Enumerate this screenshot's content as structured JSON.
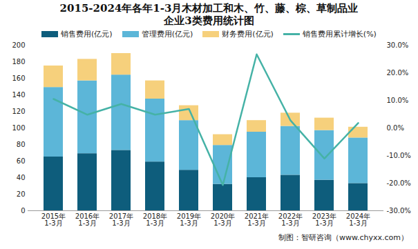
{
  "chart_data": {
    "type": "bar",
    "title": "2015-2024年各年1-3月木材加工和木、竹、藤、棕、草制品业企业3类费用统计图",
    "caption": "制图：智研咨询（www.chyxx.com）",
    "stacked": true,
    "categories": [
      "2015年\n1-3月",
      "2016年\n1-3月",
      "2017年\n1-3月",
      "2018年\n1-3月",
      "2019年\n1-3月",
      "2020年\n1-3月",
      "2021年\n1-3月",
      "2022年\n1-3月",
      "2023年\n1-3月",
      "2024年\n1-3月"
    ],
    "series": [
      {
        "name": "销售费用(亿元)",
        "color": "#0e5d7c",
        "values": [
          65,
          69,
          73,
          59,
          49,
          32,
          40,
          43,
          37,
          33
        ]
      },
      {
        "name": "管理费用(亿元)",
        "color": "#5cb6d8",
        "values": [
          84,
          88,
          91,
          76,
          60,
          47,
          55,
          59,
          60,
          55
        ]
      },
      {
        "name": "财务费用(亿元)",
        "color": "#f6d07c",
        "values": [
          26,
          26,
          26,
          22,
          18,
          13,
          14,
          16,
          15,
          13
        ]
      },
      {
        "name": "销售费用累计增长(%)",
        "color": "#45b2a6",
        "type": "line",
        "axis": "y2",
        "values": [
          10.5,
          4.8,
          8.7,
          4.8,
          6.9,
          -20.7,
          26.7,
          2.7,
          -11.1,
          1.8
        ]
      }
    ],
    "ylim": [
      0,
      200
    ],
    "yticks": [
      0,
      20,
      40,
      60,
      80,
      100,
      120,
      140,
      160,
      180,
      200
    ],
    "y2lim": [
      -30,
      30
    ],
    "y2ticks": [
      {
        "value": -30,
        "label": "-30.0%"
      },
      {
        "value": -20,
        "label": "-20.0%"
      },
      {
        "value": -10,
        "label": "-10.0%"
      },
      {
        "value": 0,
        "label": "0.0%"
      },
      {
        "value": 10,
        "label": "10.0%"
      },
      {
        "value": 20,
        "label": "20.0%"
      },
      {
        "value": 30,
        "label": "30.0%"
      }
    ],
    "grid": false,
    "legend": "top"
  }
}
